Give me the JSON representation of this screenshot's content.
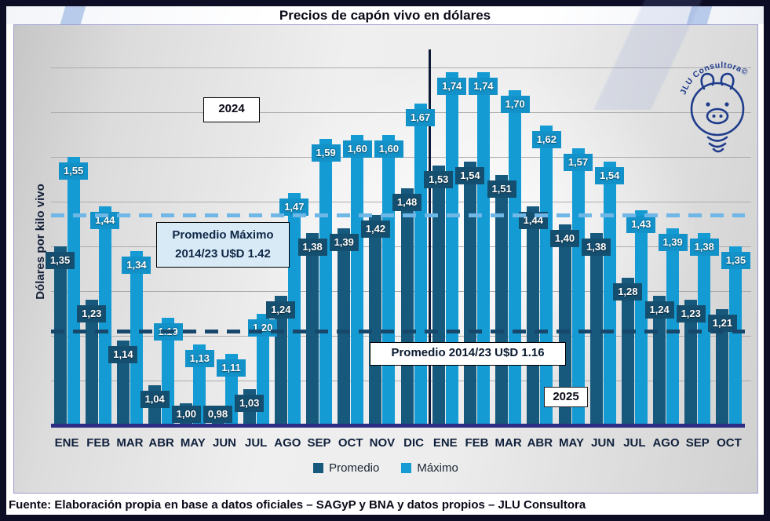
{
  "title": "Precios de capón vivo en dólares",
  "y_axis_label": "Dólares por kilo vivo",
  "footer": "Fuente: Elaboración propia en base a datos oficiales – SAGyP y BNA y datos propios – JLU Consultora",
  "logo_text": "JLU Consultora©",
  "legend": [
    {
      "label": "Promedio",
      "color": "#16597C"
    },
    {
      "label": "Máximo",
      "color": "#149BD3"
    }
  ],
  "annotations": {
    "year_left": "2024",
    "year_right": "2025",
    "max_avg_label_line1": "Promedio Máximo",
    "max_avg_label_line2": "2014/23 U$D 1.42",
    "avg_label": "Promedio 2014/23 U$D 1.16"
  },
  "chart_data": {
    "type": "bar",
    "title": "Precios de capón vivo en dólares",
    "ylabel": "Dólares por kilo vivo",
    "categories": [
      "ENE",
      "FEB",
      "MAR",
      "ABR",
      "MAY",
      "JUN",
      "JUL",
      "AGO",
      "SEP",
      "OCT",
      "NOV",
      "DIC",
      "ENE",
      "FEB",
      "MAR",
      "ABR",
      "MAY",
      "JUN",
      "JUL",
      "AGO",
      "SEP",
      "OCT"
    ],
    "year_groups": [
      {
        "label": "2024",
        "from": 0,
        "to": 11
      },
      {
        "label": "2025",
        "from": 12,
        "to": 21
      }
    ],
    "series": [
      {
        "name": "Promedio",
        "color": "#16597C",
        "label_color": "#154F70",
        "values": [
          1.35,
          1.23,
          1.14,
          1.04,
          1.0,
          0.98,
          1.03,
          1.24,
          1.38,
          1.39,
          1.42,
          1.48,
          1.53,
          1.54,
          1.51,
          1.44,
          1.4,
          1.38,
          1.28,
          1.24,
          1.23,
          1.21
        ],
        "labels": [
          "1,35",
          "1,23",
          "1,14",
          "1,04",
          "1,00",
          "0,98",
          "1,03",
          "1,24",
          "1,38",
          "1,39",
          "1,42",
          "1,48",
          "1,53",
          "1,54",
          "1,51",
          "1,44",
          "1,40",
          "1,38",
          "1,28",
          "1,24",
          "1,23",
          "1,21"
        ]
      },
      {
        "name": "Máximo",
        "color": "#149BD3",
        "label_color": "#1292C9",
        "values": [
          1.55,
          1.44,
          1.34,
          1.19,
          1.13,
          1.11,
          1.2,
          1.47,
          1.59,
          1.6,
          1.6,
          1.67,
          1.74,
          1.74,
          1.7,
          1.62,
          1.57,
          1.54,
          1.43,
          1.39,
          1.38,
          1.35
        ],
        "labels": [
          "1,55",
          "1,44",
          "1,34",
          "1.19",
          "1,13",
          "1,11",
          "1,20",
          "1,47",
          "1,59",
          "1,60",
          "1,60",
          "1,67",
          "1,74",
          "1,74",
          "1,70",
          "1,62",
          "1,57",
          "1,54",
          "1,43",
          "1,39",
          "1,38",
          "1,35"
        ]
      }
    ],
    "ylim": [
      0.95,
      1.8
    ],
    "gridline_values": [
      1.05,
      1.15,
      1.25,
      1.35,
      1.45,
      1.55,
      1.65,
      1.75
    ],
    "grid": true,
    "legend_position": "bottom",
    "reference_lines": [
      {
        "name": "max-average",
        "value": 1.42,
        "label": "Promedio Máximo 2014/23 U$D 1.42",
        "color": "#6FB7E6",
        "style": "dashed"
      },
      {
        "name": "average",
        "value": 1.16,
        "label": "Promedio 2014/23 U$D 1.16",
        "color": "#17486B",
        "style": "dashed"
      }
    ],
    "divider_index": 12
  }
}
